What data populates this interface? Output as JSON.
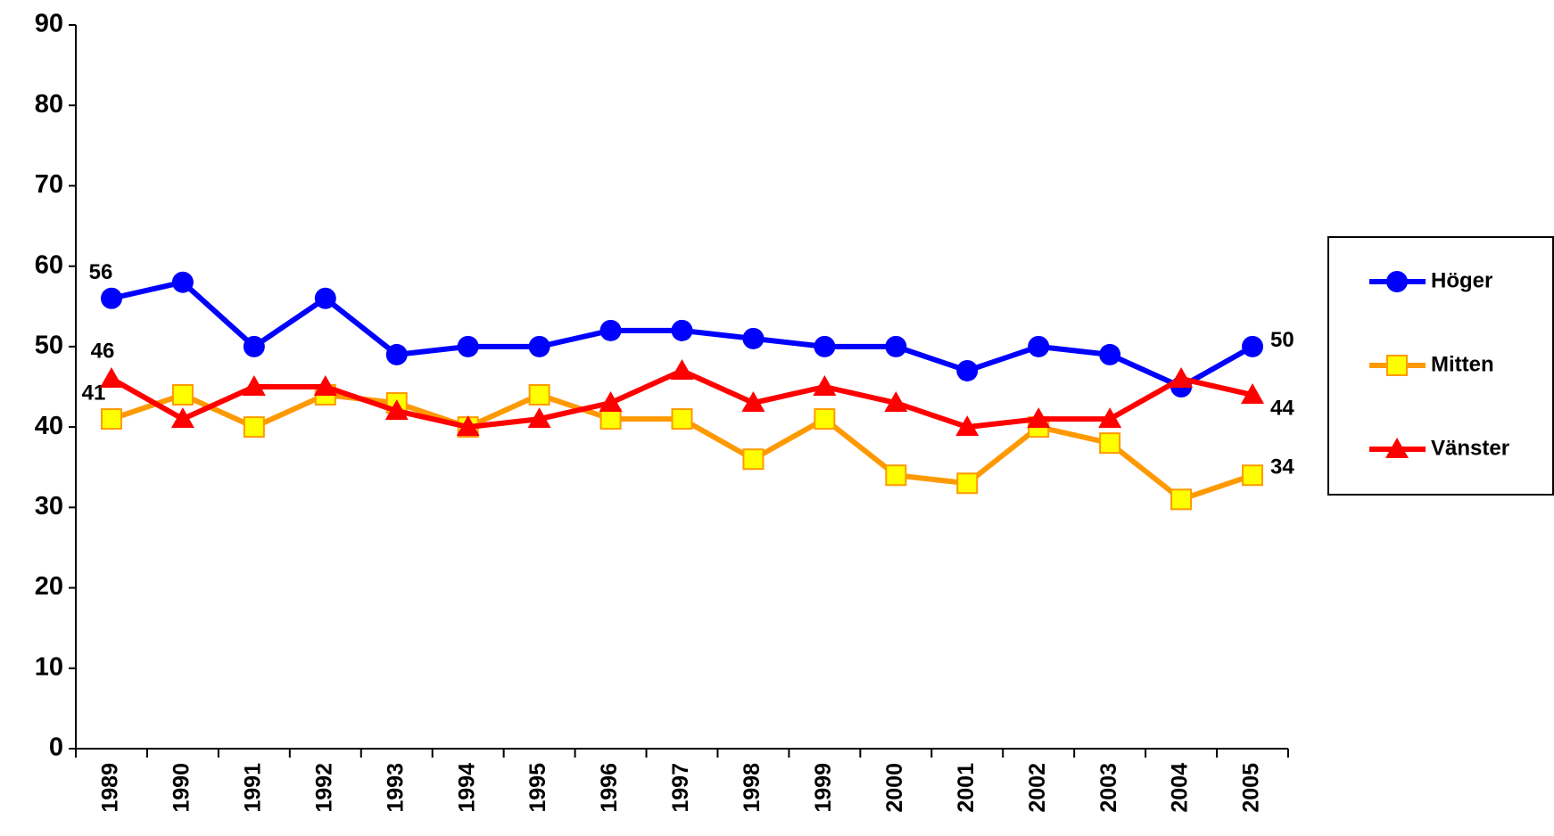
{
  "chart_data": {
    "type": "line",
    "categories": [
      "1989",
      "1990",
      "1991",
      "1992",
      "1993",
      "1994",
      "1995",
      "1996",
      "1997",
      "1998",
      "1999",
      "2000",
      "2001",
      "2002",
      "2003",
      "2004",
      "2005"
    ],
    "series": [
      {
        "name": "Höger",
        "color": "#0000ff",
        "marker": "circle",
        "values": [
          56,
          58,
          50,
          56,
          49,
          50,
          50,
          52,
          52,
          51,
          50,
          50,
          47,
          50,
          49,
          45,
          50
        ]
      },
      {
        "name": "Mitten",
        "color": "#ff9900",
        "marker": "square",
        "values": [
          41,
          44,
          40,
          44,
          43,
          40,
          44,
          41,
          41,
          36,
          41,
          34,
          33,
          40,
          38,
          31,
          34
        ]
      },
      {
        "name": "Vänster",
        "color": "#ff0000",
        "marker": "triangle",
        "values": [
          46,
          41,
          45,
          45,
          42,
          40,
          41,
          43,
          47,
          43,
          45,
          43,
          40,
          41,
          41,
          46,
          44
        ]
      }
    ],
    "ylim": [
      0,
      90
    ],
    "yticks": [
      0,
      10,
      20,
      30,
      40,
      50,
      60,
      70,
      80,
      90
    ],
    "grid": false,
    "legend": "right"
  }
}
